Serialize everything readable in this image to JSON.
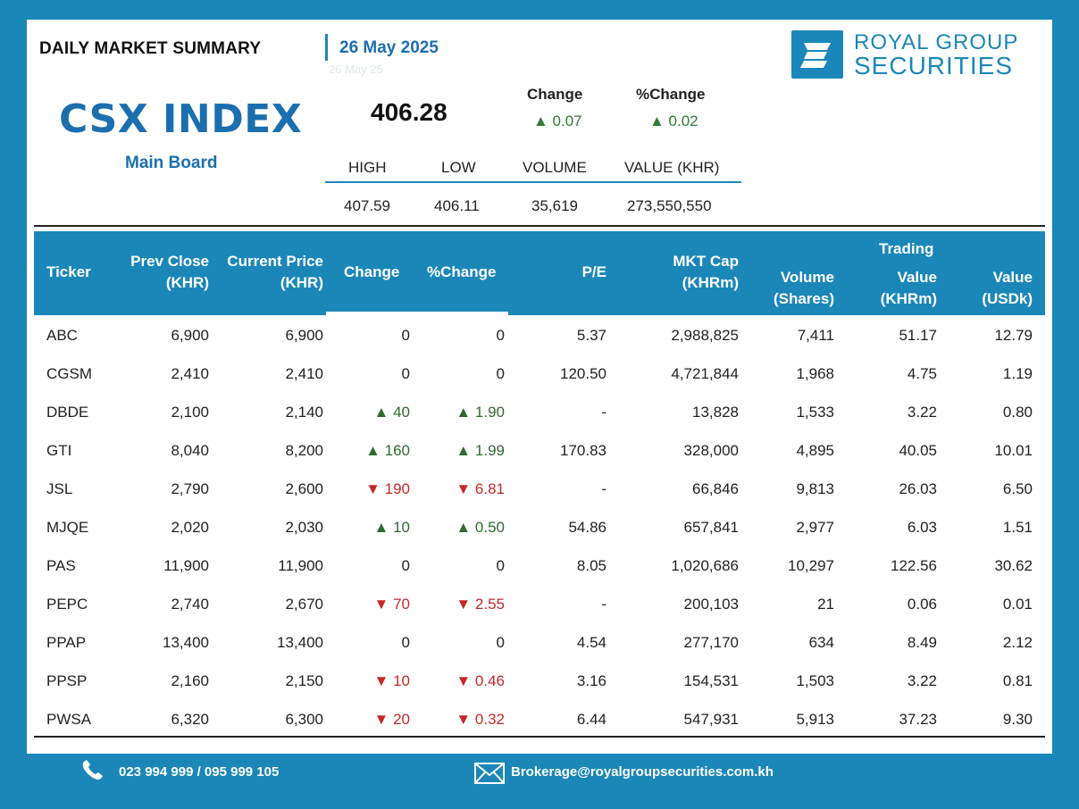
{
  "header": {
    "title": "DAILY MARKET SUMMARY",
    "date": "26 May 2025",
    "ghost_date": "26 May 25"
  },
  "logo": {
    "line1": "ROYAL GROUP",
    "line2": "SECURITIES"
  },
  "index": {
    "name": "CSX INDEX",
    "board": "Main Board",
    "value": "406.28",
    "change_label": "Change",
    "change_value": "▲ 0.07",
    "pct_label": "%Change",
    "pct_value": "▲ 0.02",
    "stats_labels": [
      "HIGH",
      "LOW",
      "VOLUME",
      "VALUE (KHR)"
    ],
    "stats_values": [
      "407.59",
      "406.11",
      "35,619",
      "273,550,550"
    ]
  },
  "table": {
    "headers": {
      "ticker": "Ticker",
      "prev_close": "Prev Close",
      "prev_close_unit": "(KHR)",
      "current_price": "Current Price",
      "current_price_unit": "(KHR)",
      "change": "Change",
      "pct_change": "%Change",
      "pe": "P/E",
      "mkt_cap": "MKT Cap",
      "mkt_cap_unit": "(KHRm)",
      "volume": "Volume",
      "volume_unit": "(Shares)",
      "trading": "Trading",
      "value_khr": "Value",
      "value_khr_unit": "(KHRm)",
      "value_usd": "Value",
      "value_usd_unit": "(USDk)"
    },
    "rows": [
      {
        "ticker": "ABC",
        "prev": "6,900",
        "cur": "6,900",
        "chg": "0",
        "pct": "0",
        "dir": "flat",
        "pe": "5.37",
        "cap": "2,988,825",
        "vol": "7,411",
        "vkhr": "51.17",
        "vusd": "12.79"
      },
      {
        "ticker": "CGSM",
        "prev": "2,410",
        "cur": "2,410",
        "chg": "0",
        "pct": "0",
        "dir": "flat",
        "pe": "120.50",
        "cap": "4,721,844",
        "vol": "1,968",
        "vkhr": "4.75",
        "vusd": "1.19"
      },
      {
        "ticker": "DBDE",
        "prev": "2,100",
        "cur": "2,140",
        "chg": "▲ 40",
        "pct": "▲ 1.90",
        "dir": "up",
        "pe": "-",
        "cap": "13,828",
        "vol": "1,533",
        "vkhr": "3.22",
        "vusd": "0.80"
      },
      {
        "ticker": "GTI",
        "prev": "8,040",
        "cur": "8,200",
        "chg": "▲ 160",
        "pct": "▲ 1.99",
        "dir": "up",
        "pe": "170.83",
        "cap": "328,000",
        "vol": "4,895",
        "vkhr": "40.05",
        "vusd": "10.01"
      },
      {
        "ticker": "JSL",
        "prev": "2,790",
        "cur": "2,600",
        "chg": "▼ 190",
        "pct": "▼ 6.81",
        "dir": "down",
        "pe": "-",
        "cap": "66,846",
        "vol": "9,813",
        "vkhr": "26.03",
        "vusd": "6.50"
      },
      {
        "ticker": "MJQE",
        "prev": "2,020",
        "cur": "2,030",
        "chg": "▲ 10",
        "pct": "▲ 0.50",
        "dir": "up",
        "pe": "54.86",
        "cap": "657,841",
        "vol": "2,977",
        "vkhr": "6.03",
        "vusd": "1.51"
      },
      {
        "ticker": "PAS",
        "prev": "11,900",
        "cur": "11,900",
        "chg": "0",
        "pct": "0",
        "dir": "flat",
        "pe": "8.05",
        "cap": "1,020,686",
        "vol": "10,297",
        "vkhr": "122.56",
        "vusd": "30.62"
      },
      {
        "ticker": "PEPC",
        "prev": "2,740",
        "cur": "2,670",
        "chg": "▼ 70",
        "pct": "▼ 2.55",
        "dir": "down",
        "pe": "-",
        "cap": "200,103",
        "vol": "21",
        "vkhr": "0.06",
        "vusd": "0.01"
      },
      {
        "ticker": "PPAP",
        "prev": "13,400",
        "cur": "13,400",
        "chg": "0",
        "pct": "0",
        "dir": "flat",
        "pe": "4.54",
        "cap": "277,170",
        "vol": "634",
        "vkhr": "8.49",
        "vusd": "2.12"
      },
      {
        "ticker": "PPSP",
        "prev": "2,160",
        "cur": "2,150",
        "chg": "▼ 10",
        "pct": "▼ 0.46",
        "dir": "down",
        "pe": "3.16",
        "cap": "154,531",
        "vol": "1,503",
        "vkhr": "3.22",
        "vusd": "0.81"
      },
      {
        "ticker": "PWSA",
        "prev": "6,320",
        "cur": "6,300",
        "chg": "▼ 20",
        "pct": "▼ 0.32",
        "dir": "down",
        "pe": "6.44",
        "cap": "547,931",
        "vol": "5,913",
        "vkhr": "37.23",
        "vusd": "9.30"
      }
    ]
  },
  "footer": {
    "phone": "023 994 999 / 095 999 105",
    "email": "Brokerage@royalgroupsecurities.com.kh"
  },
  "colors": {
    "brand": "#1b87b9",
    "up": "#2e6b2e",
    "down": "#c62828"
  }
}
